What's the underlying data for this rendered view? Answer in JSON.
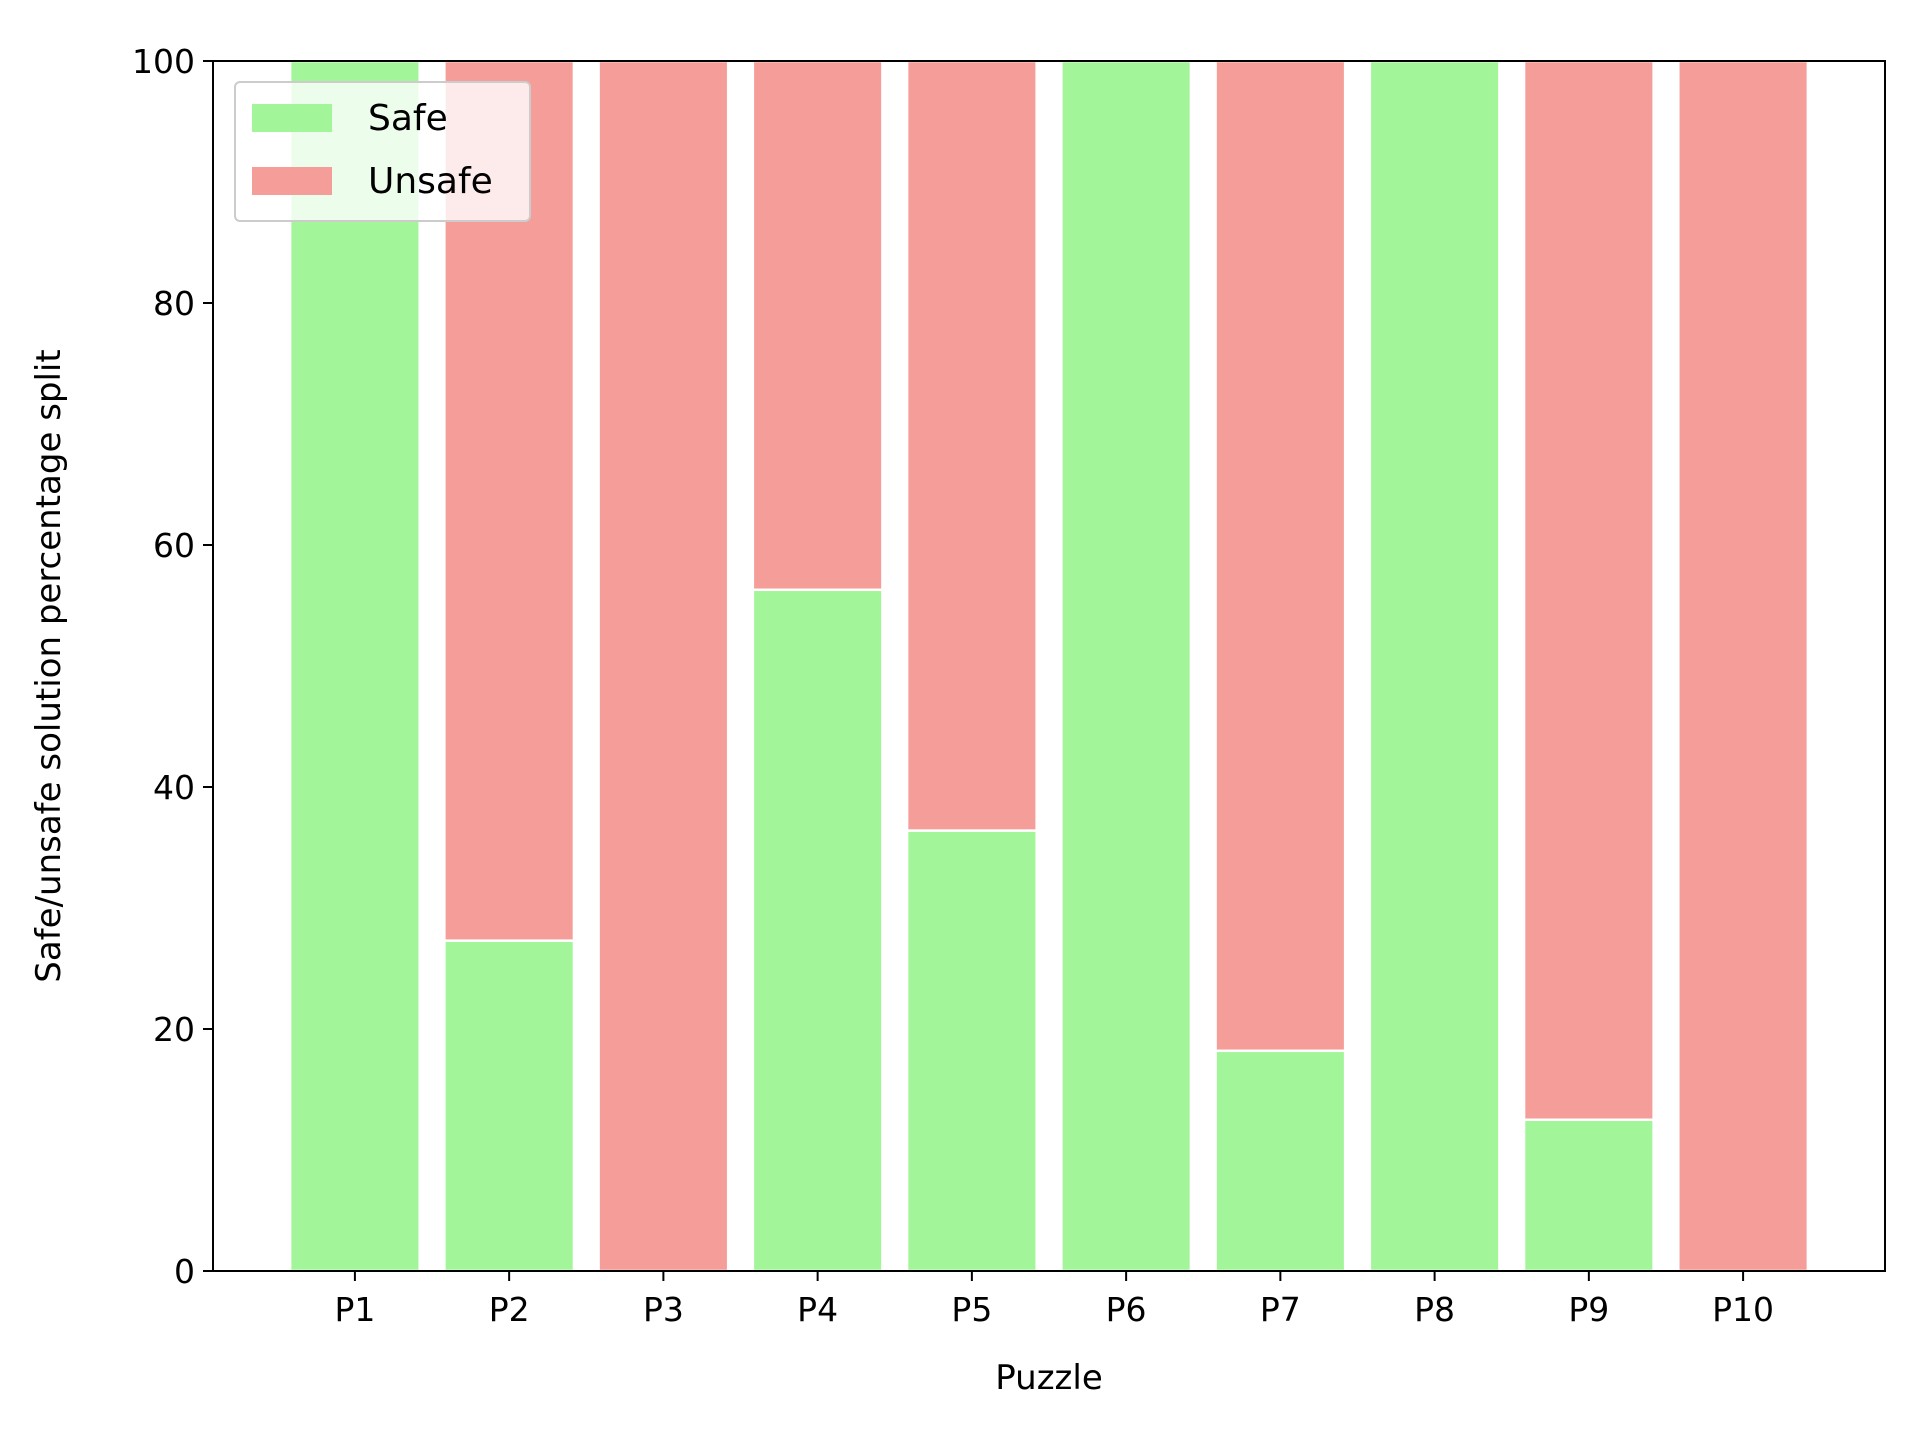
{
  "chart_data": {
    "type": "bar",
    "stacked": true,
    "categories": [
      "P1",
      "P2",
      "P3",
      "P4",
      "P5",
      "P6",
      "P7",
      "P8",
      "P9",
      "P10"
    ],
    "series": [
      {
        "name": "Safe",
        "color": "#a3f59a",
        "values": [
          100,
          27.3,
          0,
          56.3,
          36.4,
          100,
          18.2,
          100,
          12.5,
          0
        ]
      },
      {
        "name": "Unsafe",
        "color": "#f59d99",
        "values": [
          0,
          72.7,
          100,
          43.7,
          63.6,
          0,
          81.8,
          0,
          87.5,
          100
        ]
      }
    ],
    "xlabel": "Puzzle",
    "ylabel": "Safe/unsafe solution percentage split",
    "ylim": [
      0,
      100
    ],
    "yticks": [
      "0",
      "20",
      "40",
      "60",
      "80",
      "100"
    ],
    "grid": false,
    "legend_position": "top-left"
  }
}
